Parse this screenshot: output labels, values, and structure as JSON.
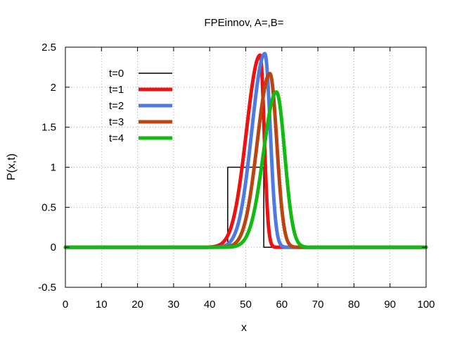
{
  "chart_data": {
    "type": "line",
    "title": "FPEinnov, A=,B=",
    "xlabel": "x",
    "ylabel": "P(x,t)",
    "xlim": [
      0,
      100
    ],
    "ylim": [
      -0.5,
      2.5
    ],
    "xticks": [
      "0",
      "10",
      "20",
      "30",
      "40",
      "50",
      "60",
      "70",
      "80",
      "90",
      "100"
    ],
    "yticks": [
      "-0.5",
      "0",
      "0.5",
      "1",
      "1.5",
      "2",
      "2.5"
    ],
    "grid": true,
    "legend_position": "top-left",
    "series": [
      {
        "name": "t=0",
        "color": "#000000",
        "shape": "box",
        "x0": 45,
        "x1": 55,
        "height": 1.0
      },
      {
        "name": "t=1",
        "color": "#ee1111",
        "shape": "skewpeak",
        "peak_x": 54.0,
        "peak_y": 2.4,
        "left_width": 3.8,
        "right_width": 1.1
      },
      {
        "name": "t=2",
        "color": "#4f7adf",
        "shape": "skewpeak",
        "peak_x": 55.3,
        "peak_y": 2.42,
        "left_width": 3.6,
        "right_width": 1.5
      },
      {
        "name": "t=3",
        "color": "#bb4411",
        "shape": "skewpeak",
        "peak_x": 56.7,
        "peak_y": 2.17,
        "left_width": 3.5,
        "right_width": 1.9
      },
      {
        "name": "t=4",
        "color": "#11bb11",
        "shape": "skewpeak",
        "peak_x": 58.5,
        "peak_y": 1.94,
        "left_width": 3.6,
        "right_width": 2.3
      }
    ]
  }
}
